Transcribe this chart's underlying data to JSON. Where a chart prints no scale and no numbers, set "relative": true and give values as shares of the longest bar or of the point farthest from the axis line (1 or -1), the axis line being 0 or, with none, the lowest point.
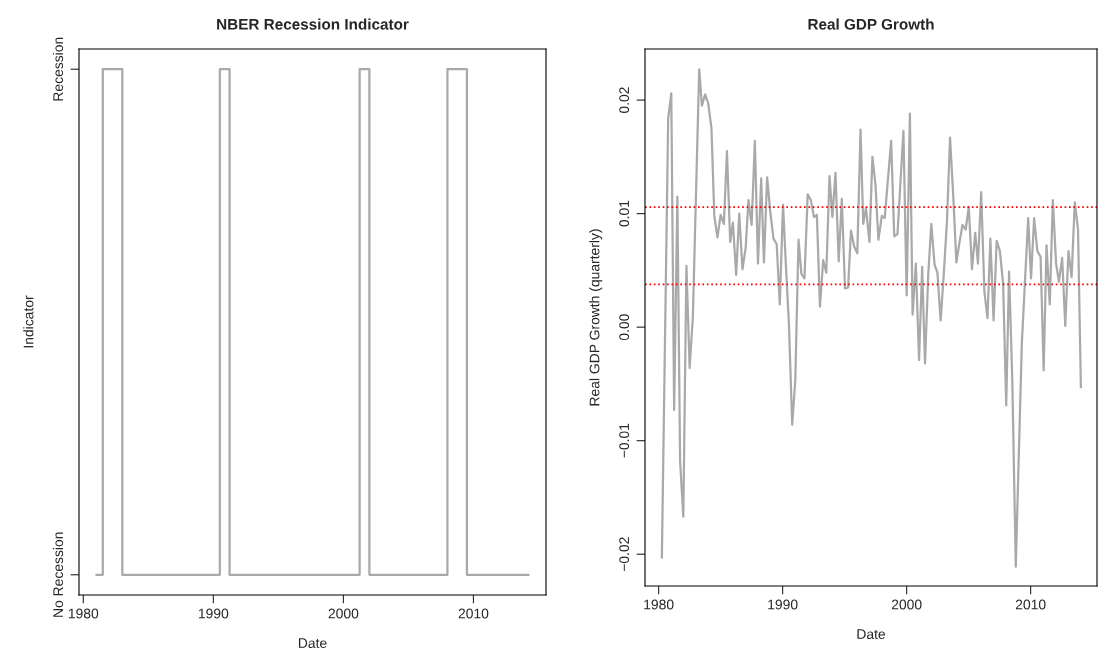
{
  "chart_data": [
    {
      "type": "step",
      "title": "NBER Recession Indicator",
      "xlabel": "Date",
      "ylabel": "Indicator",
      "x": [
        1981.0,
        1981.5,
        1983.0,
        1990.5,
        1991.25,
        2001.25,
        2002.0,
        2008.0,
        2009.5,
        2014.25
      ],
      "series": [
        {
          "color": "#a9a9a9",
          "values": [
            0,
            1,
            0,
            1,
            0,
            1,
            0,
            1,
            0,
            0
          ]
        }
      ],
      "xlim": [
        1979.67,
        2015.58
      ],
      "xticks": [
        1980,
        1990,
        2000,
        2010
      ],
      "relative": true,
      "y_categories": [
        "Recession",
        "No Recession"
      ],
      "grid": false,
      "legend": false,
      "line_style": "solid",
      "marker": "none"
    },
    {
      "type": "line",
      "title": "Real GDP Growth",
      "xlabel": "Date",
      "ylabel": "Real GDP Growth (quarterly)",
      "x": [
        1980.26,
        1980.77,
        1981.02,
        1981.25,
        1981.51,
        1981.73,
        1981.99,
        1982.24,
        1982.5,
        1982.76,
        1983.27,
        1983.49,
        1983.75,
        1984.0,
        1984.26,
        1984.49,
        1984.74,
        1985.0,
        1985.26,
        1985.51,
        1985.77,
        1985.99,
        1986.25,
        1986.5,
        1986.76,
        1987.02,
        1987.24,
        1987.5,
        1987.76,
        1988.01,
        1988.27,
        1988.49,
        1988.75,
        1989.0,
        1989.26,
        1989.52,
        1989.77,
        1990.03,
        1990.26,
        1990.51,
        1990.77,
        1991.02,
        1991.28,
        1991.51,
        1991.76,
        1992.02,
        1992.27,
        1992.53,
        1992.76,
        1993.01,
        1993.27,
        1993.52,
        1993.78,
        1994.01,
        1994.26,
        1994.52,
        1994.77,
        1995.03,
        1995.28,
        1995.51,
        1995.77,
        1996.02,
        1996.28,
        1996.5,
        1996.72,
        1997.0,
        1997.24,
        1997.49,
        1997.72,
        1998.0,
        1998.23,
        1998.75,
        1999.0,
        1999.26,
        1999.74,
        2000.0,
        2000.26,
        2000.48,
        2000.74,
        2001.0,
        2001.25,
        2001.48,
        2001.74,
        2001.99,
        2002.25,
        2002.48,
        2002.74,
        2002.99,
        2003.25,
        2003.5,
        2003.76,
        2004.01,
        2004.25,
        2004.5,
        2004.76,
        2005.01,
        2005.27,
        2005.53,
        2005.75,
        2006.01,
        2006.27,
        2006.52,
        2006.75,
        2007.01,
        2007.26,
        2007.52,
        2007.78,
        2008.03,
        2008.26,
        2008.52,
        2008.8,
        2009.29,
        2009.8,
        2010.03,
        2010.28,
        2010.54,
        2010.8,
        2011.05,
        2011.28,
        2011.54,
        2011.79,
        2012.05,
        2012.28,
        2012.54,
        2012.79,
        2013.05,
        2013.3,
        2013.56,
        2013.82,
        2014.05
      ],
      "series": [
        {
          "color": "#a9a9a9",
          "values": [
            -0.0203,
            0.0184,
            0.0206,
            -0.0073,
            0.0115,
            -0.0118,
            -0.0167,
            0.0054,
            -0.0036,
            0.0009,
            0.0227,
            0.0195,
            0.0205,
            0.0197,
            0.0175,
            0.0098,
            0.0079,
            0.0099,
            0.0091,
            0.0155,
            0.0075,
            0.0092,
            0.0046,
            0.01,
            0.0051,
            0.007,
            0.0112,
            0.009,
            0.0164,
            0.0056,
            0.0131,
            0.0057,
            0.0132,
            0.0102,
            0.0078,
            0.0073,
            0.002,
            0.0108,
            0.0055,
            0.0002,
            -0.0086,
            -0.0047,
            0.0077,
            0.0047,
            0.0043,
            0.0117,
            0.0112,
            0.0097,
            0.0099,
            0.0018,
            0.0059,
            0.0048,
            0.0133,
            0.0097,
            0.0136,
            0.0058,
            0.0113,
            0.0034,
            0.0035,
            0.0085,
            0.0071,
            0.0065,
            0.0174,
            0.0091,
            0.0105,
            0.0075,
            0.015,
            0.0125,
            0.0077,
            0.0098,
            0.0096,
            0.0164,
            0.008,
            0.0082,
            0.0173,
            0.0028,
            0.0188,
            0.0011,
            0.0056,
            -0.0029,
            0.0053,
            -0.0032,
            0.0046,
            0.0091,
            0.0055,
            0.0048,
            0.0006,
            0.0046,
            0.0093,
            0.0167,
            0.0115,
            0.0057,
            0.0074,
            0.009,
            0.0086,
            0.0106,
            0.0051,
            0.0083,
            0.0056,
            0.0119,
            0.0031,
            0.0008,
            0.0078,
            0.0006,
            0.0076,
            0.0067,
            0.0038,
            -0.0069,
            0.0049,
            -0.0047,
            -0.0211,
            -0.0014,
            0.0096,
            0.0043,
            0.0096,
            0.0067,
            0.0062,
            -0.0038,
            0.0072,
            0.002,
            0.0112,
            0.0056,
            0.004,
            0.0061,
            0.0001,
            0.0067,
            0.0044,
            0.011,
            0.0086,
            -0.0053
          ]
        }
      ],
      "xlim": [
        1978.9,
        2015.35
      ],
      "xticks": [
        1980,
        1990,
        2000,
        2010
      ],
      "ylim": [
        -0.0228,
        0.0245
      ],
      "yticks": [
        {
          "value": -0.02,
          "label": "−0.02"
        },
        {
          "value": -0.01,
          "label": "−0.01"
        },
        {
          "value": 0,
          "label": "0.00"
        },
        {
          "value": 0.01,
          "label": "0.01"
        },
        {
          "value": 0.02,
          "label": "0.02"
        }
      ],
      "ref_lines": [
        {
          "axis": "y",
          "value": 0.01057,
          "color": "#ff0000",
          "line_style": "dotted"
        },
        {
          "axis": "y",
          "value": 0.00377,
          "color": "#ff0000",
          "line_style": "dotted"
        }
      ],
      "grid": false,
      "legend": false,
      "line_style": "solid",
      "marker": "none"
    }
  ]
}
